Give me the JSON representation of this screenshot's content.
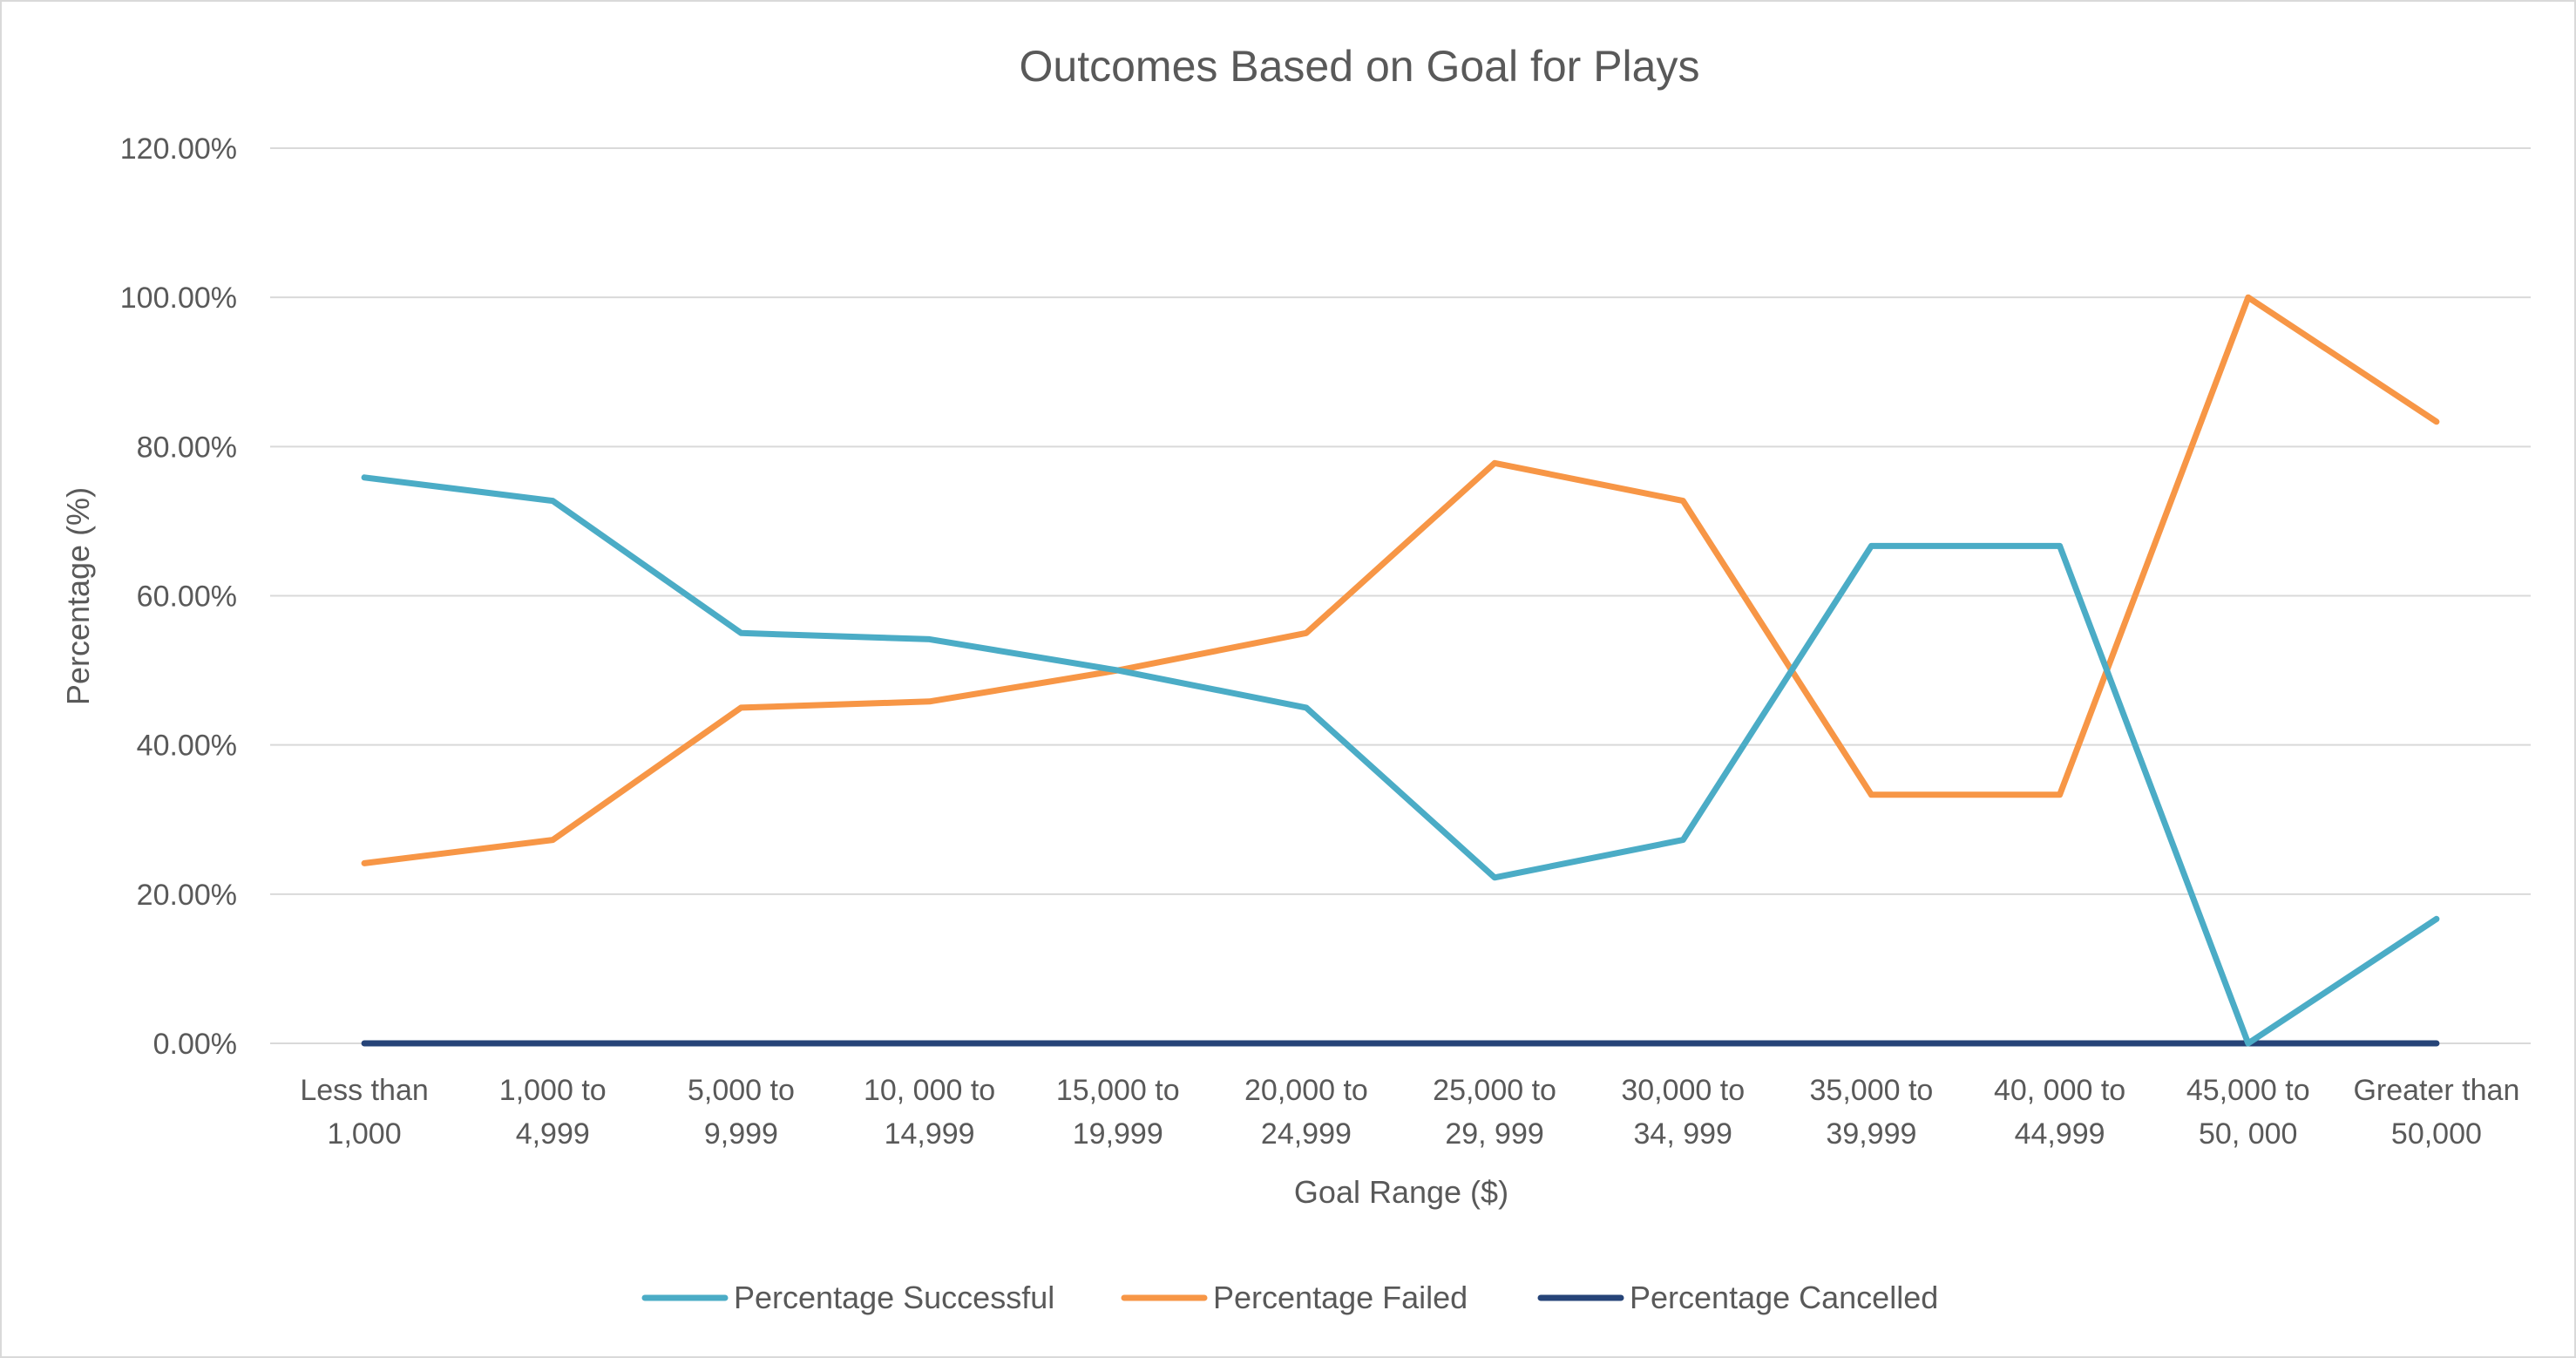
{
  "chart_data": {
    "type": "line",
    "title": "Outcomes Based on Goal for Plays",
    "xlabel": "Goal Range ($)",
    "ylabel": "Percentage (%)",
    "ylim": [
      0,
      1.2
    ],
    "y_ticks": [
      {
        "value": 0.0,
        "label": "0.00%"
      },
      {
        "value": 0.2,
        "label": "20.00%"
      },
      {
        "value": 0.4,
        "label": "40.00%"
      },
      {
        "value": 0.6,
        "label": "60.00%"
      },
      {
        "value": 0.8,
        "label": "80.00%"
      },
      {
        "value": 1.0,
        "label": "100.00%"
      },
      {
        "value": 1.2,
        "label": "120.00%"
      }
    ],
    "grid": true,
    "legend_position": "bottom",
    "categories": [
      [
        "Less than",
        "1,000"
      ],
      [
        "1,000 to",
        "4,999"
      ],
      [
        "5,000 to",
        "9,999"
      ],
      [
        "10, 000 to",
        "14,999"
      ],
      [
        "15,000 to",
        "19,999"
      ],
      [
        "20,000 to",
        "24,999"
      ],
      [
        "25,000 to",
        "29, 999"
      ],
      [
        "30,000 to",
        "34, 999"
      ],
      [
        "35,000 to",
        "39,999"
      ],
      [
        "40, 000 to",
        "44,999"
      ],
      [
        "45,000 to",
        "50, 000"
      ],
      [
        "Greater than",
        "50,000"
      ]
    ],
    "series": [
      {
        "name": "Percentage Successful",
        "color": "#4BACC6",
        "values": [
          0.7586,
          0.7273,
          0.55,
          0.5417,
          0.5,
          0.45,
          0.2222,
          0.2727,
          0.6667,
          0.6667,
          0.0,
          0.1667
        ]
      },
      {
        "name": "Percentage Failed",
        "color": "#F79646",
        "values": [
          0.2414,
          0.2727,
          0.45,
          0.4583,
          0.5,
          0.55,
          0.7778,
          0.7273,
          0.3333,
          0.3333,
          1.0,
          0.8333
        ]
      },
      {
        "name": "Percentage Cancelled",
        "color": "#264478",
        "values": [
          0,
          0,
          0,
          0,
          0,
          0,
          0,
          0,
          0,
          0,
          0,
          0
        ]
      }
    ]
  }
}
